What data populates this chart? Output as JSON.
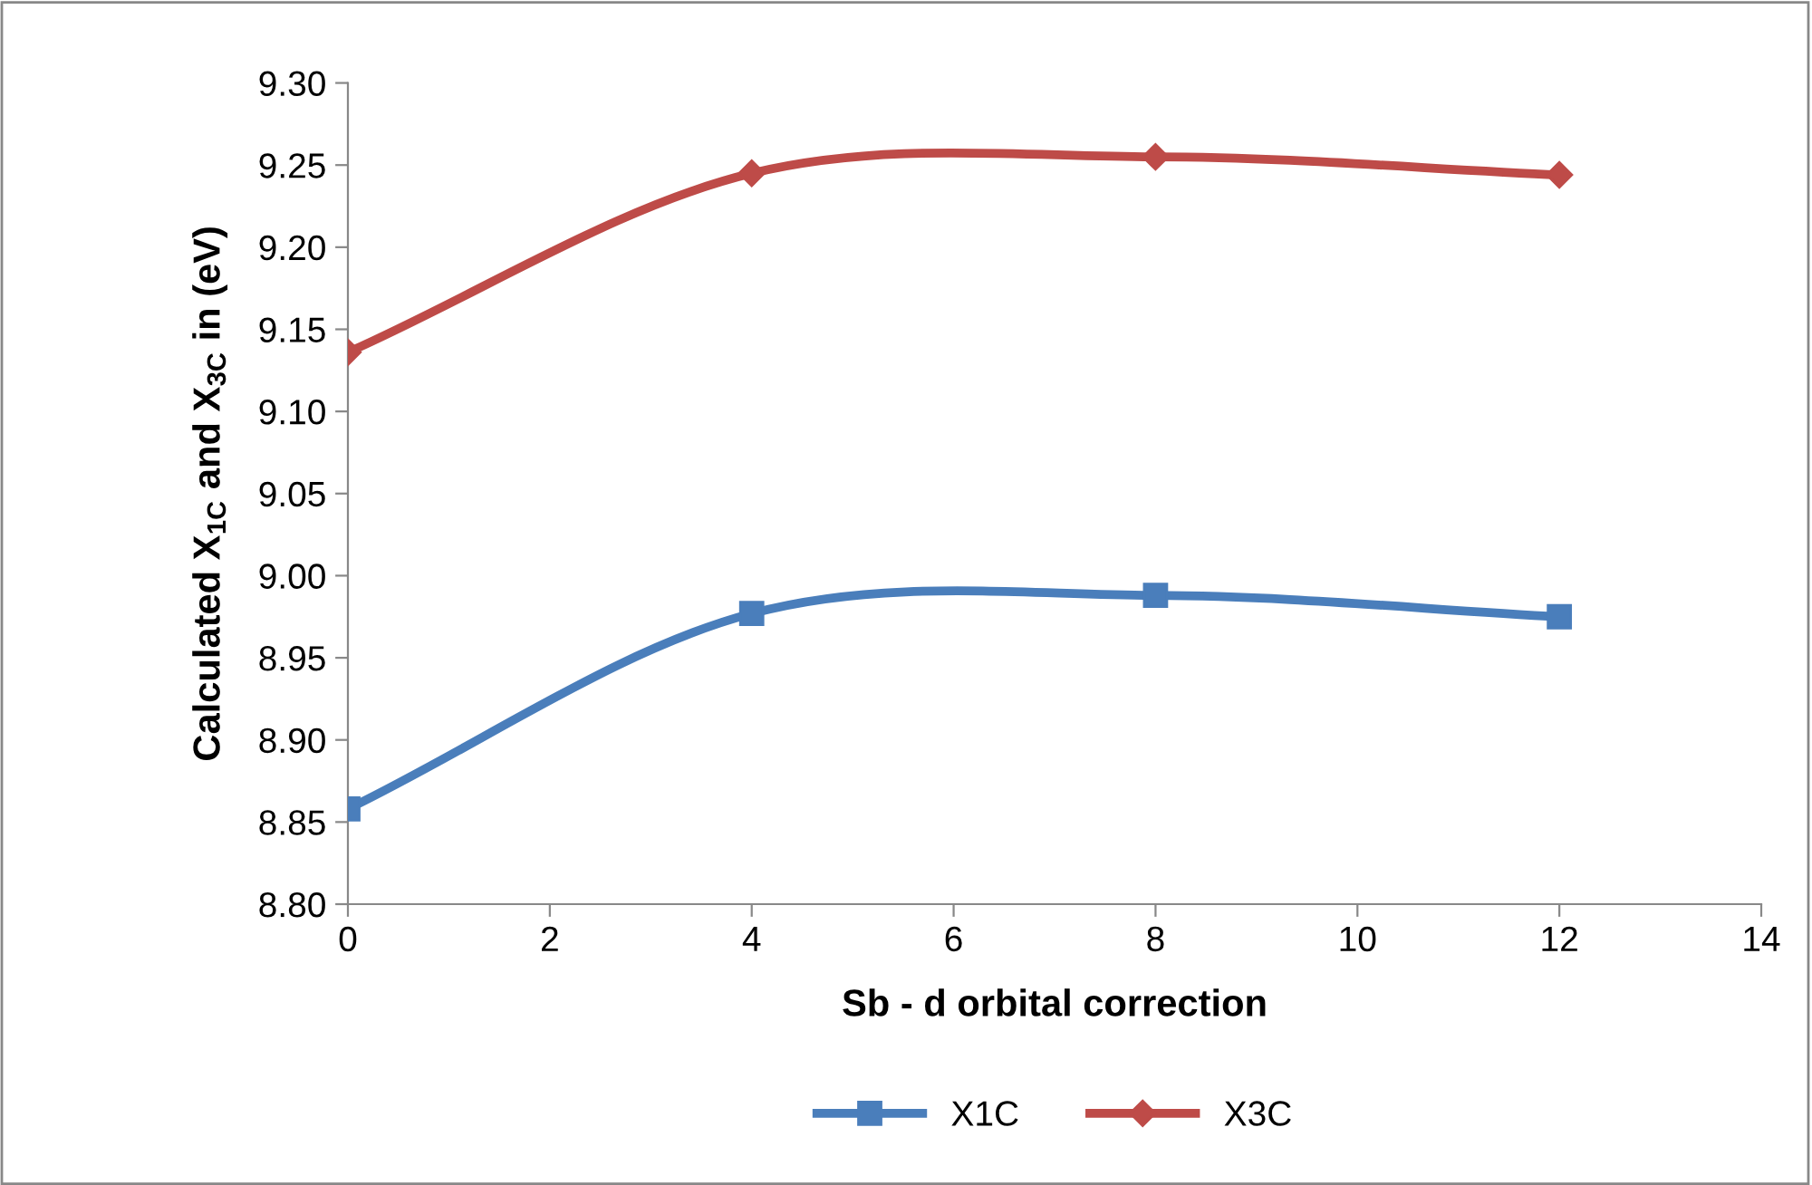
{
  "chart_data": {
    "type": "line",
    "xlabel": "Sb - d orbital correction",
    "ylabel": "Calculated X$_{1C}$ and X$_{3C}$ in (eV)",
    "x": [
      0,
      4,
      8,
      12
    ],
    "series": [
      {
        "name": "X1C",
        "color": "#4a7ebb",
        "marker": "square",
        "values": [
          8.858,
          8.977,
          8.988,
          8.975
        ]
      },
      {
        "name": "X3C",
        "color": "#be4b48",
        "marker": "diamond",
        "values": [
          9.136,
          9.245,
          9.255,
          9.244
        ]
      }
    ],
    "xlim": [
      0,
      14
    ],
    "xticks": [
      0,
      2,
      4,
      6,
      8,
      10,
      12,
      14
    ],
    "ylim": [
      8.8,
      9.3
    ],
    "yticks": [
      {
        "value": 8.8,
        "label": "8.80"
      },
      {
        "value": 8.85,
        "label": "8.85"
      },
      {
        "value": 8.9,
        "label": "8.90"
      },
      {
        "value": 8.95,
        "label": "8.95"
      },
      {
        "value": 9.0,
        "label": "9.00"
      },
      {
        "value": 9.05,
        "label": "9.05"
      },
      {
        "value": 9.1,
        "label": "9.10"
      },
      {
        "value": 9.15,
        "label": "9.15"
      },
      {
        "value": 9.2,
        "label": "9.20"
      },
      {
        "value": 9.25,
        "label": "9.25"
      },
      {
        "value": 9.3,
        "label": "9.30"
      }
    ],
    "grid": false,
    "legend": "bottom",
    "line_style": "solid"
  }
}
